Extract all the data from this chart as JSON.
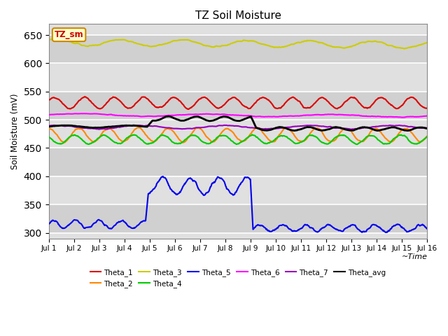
{
  "title": "TZ Soil Moisture",
  "ylabel": "Soil Moisture (mV)",
  "xlabel": "~Time",
  "legend_label": "TZ_sm",
  "ylim": [
    290,
    670
  ],
  "yticks": [
    300,
    350,
    400,
    450,
    500,
    550,
    600,
    650
  ],
  "x_start": 0,
  "x_end": 15,
  "xtick_labels": [
    "Jul 1",
    "Jul 2",
    "Jul 3",
    "Jul 4",
    "Jul 5",
    "Jul 6",
    "Jul 7",
    "Jul 8",
    "Jul 9",
    "Jul 10",
    "Jul 11",
    "Jul 12",
    "Jul 13",
    "Jul 14",
    "Jul 15",
    "Jul 16"
  ],
  "xtick_positions": [
    0,
    1,
    2,
    3,
    4,
    5,
    6,
    7,
    8,
    9,
    10,
    11,
    12,
    13,
    14,
    15
  ],
  "bg_light": "#e8e8e8",
  "bg_dark": "#d0d0d0",
  "grid_color": "#c0c0c0",
  "series": {
    "Theta_1": {
      "color": "#dd0000",
      "lw": 1.5
    },
    "Theta_2": {
      "color": "#ff8800",
      "lw": 1.5
    },
    "Theta_3": {
      "color": "#cccc00",
      "lw": 1.5
    },
    "Theta_4": {
      "color": "#00cc00",
      "lw": 1.5
    },
    "Theta_5": {
      "color": "#0000ee",
      "lw": 1.5
    },
    "Theta_6": {
      "color": "#ff00ff",
      "lw": 1.5
    },
    "Theta_7": {
      "color": "#9900bb",
      "lw": 1.5
    },
    "Theta_avg": {
      "color": "#000000",
      "lw": 2.0
    }
  },
  "legend_box_color": "#ffffcc",
  "legend_box_edge": "#cc8800"
}
